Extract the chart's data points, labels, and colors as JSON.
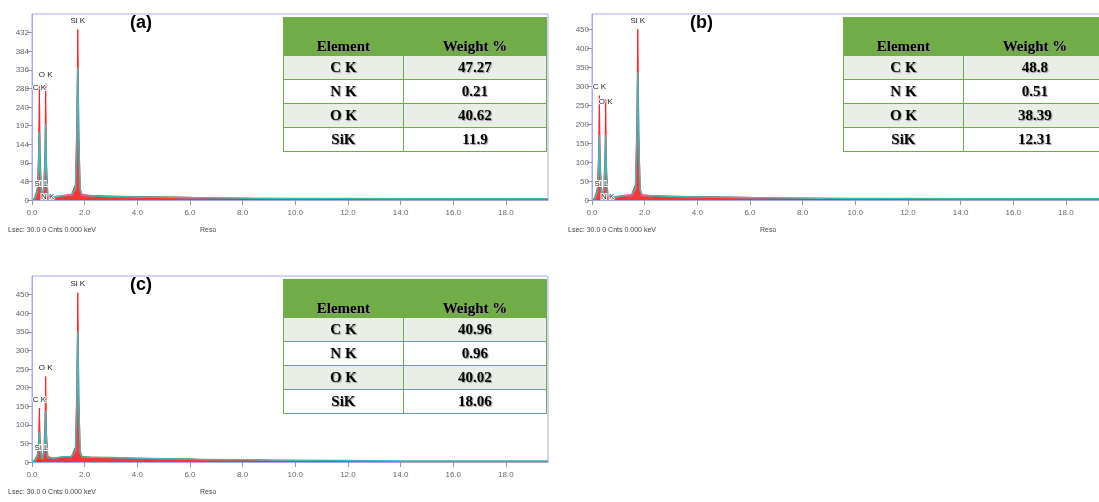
{
  "chart_data": [
    {
      "type": "area",
      "title": "(a)",
      "xlim": [
        0,
        19.6
      ],
      "xticks": [
        {
          "value": 0,
          "label": "0.0"
        },
        {
          "value": 2,
          "label": "2.0"
        },
        {
          "value": 4,
          "label": "4.0"
        },
        {
          "value": 6,
          "label": "6.0"
        },
        {
          "value": 8,
          "label": "8.0"
        },
        {
          "value": 10,
          "label": "10.0"
        },
        {
          "value": 12,
          "label": "12.0"
        },
        {
          "value": 14,
          "label": "14.0"
        },
        {
          "value": 16,
          "label": "16.0"
        },
        {
          "value": 18,
          "label": "18.0"
        }
      ],
      "ylim": [
        0,
        480
      ],
      "yticks": [
        0,
        48,
        96,
        144,
        192,
        240,
        288,
        336,
        384,
        432
      ],
      "grid": false,
      "marker": "none",
      "x": [
        0,
        0.1,
        0.2,
        0.25,
        0.28,
        0.31,
        0.36,
        0.39,
        0.45,
        0.49,
        0.52,
        0.55,
        0.6,
        0.8,
        1.0,
        1.2,
        1.5,
        1.65,
        1.7,
        1.74,
        1.78,
        1.83,
        1.9,
        2.2,
        3,
        4,
        5,
        6,
        6.5,
        8,
        10,
        12,
        14,
        16,
        18,
        19.6
      ],
      "series": [
        {
          "type": "area",
          "color": "#ff2020",
          "values": [
            0,
            5,
            30,
            120,
            295,
            120,
            20,
            10,
            40,
            120,
            300,
            100,
            15,
            8,
            10,
            12,
            14,
            40,
            200,
            440,
            180,
            30,
            14,
            12,
            10,
            9,
            8,
            7,
            5,
            3,
            2,
            1,
            1,
            1,
            1,
            1
          ]
        },
        {
          "type": "line",
          "color": "#3fb8b8",
          "values": [
            0,
            4,
            20,
            80,
            175,
            80,
            15,
            8,
            30,
            90,
            195,
            70,
            12,
            7,
            9,
            11,
            12,
            30,
            150,
            340,
            140,
            25,
            12,
            11,
            9,
            8,
            7,
            6,
            6,
            5,
            4,
            4,
            3,
            3,
            3,
            3
          ]
        }
      ],
      "annotations": [
        "Lsec: 30.0 0 Cnts 0.000 keV",
        "Reso",
        "Element",
        "Weight %",
        "C K",
        "47.27",
        "N K",
        "0.21",
        "O K",
        "40.62",
        "SiK",
        "11.9",
        {
          "text": "Si K",
          "x": 1.74,
          "y": 440
        },
        {
          "text": "O K",
          "x": 0.52,
          "y": 300
        },
        {
          "text": "C K",
          "x": 0.28,
          "y": 295
        },
        {
          "text": "Si L",
          "x": 0.36,
          "y": 20
        },
        {
          "text": "N K",
          "x": 0.6,
          "y": 15
        }
      ]
    },
    {
      "type": "area",
      "title": "(b)",
      "xlim": [
        0,
        19.6
      ],
      "xticks": [
        {
          "value": 0,
          "label": "0.0"
        },
        {
          "value": 2,
          "label": "2.0"
        },
        {
          "value": 4,
          "label": "4.0"
        },
        {
          "value": 6,
          "label": "6.0"
        },
        {
          "value": 8,
          "label": "8.0"
        },
        {
          "value": 10,
          "label": "10.0"
        },
        {
          "value": 12,
          "label": "12.0"
        },
        {
          "value": 14,
          "label": "14.0"
        },
        {
          "value": 16,
          "label": "16.0"
        },
        {
          "value": 18,
          "label": "18.0"
        }
      ],
      "ylim": [
        0,
        490
      ],
      "yticks": [
        0,
        50,
        100,
        150,
        200,
        250,
        300,
        350,
        400,
        450
      ],
      "grid": false,
      "marker": "none",
      "x": [
        0,
        0.1,
        0.2,
        0.25,
        0.28,
        0.31,
        0.36,
        0.39,
        0.45,
        0.49,
        0.52,
        0.55,
        0.6,
        0.8,
        1.0,
        1.2,
        1.5,
        1.65,
        1.7,
        1.74,
        1.78,
        1.83,
        1.9,
        2.2,
        3,
        4,
        5,
        6,
        6.5,
        8,
        10,
        12,
        14,
        16,
        18,
        19.6
      ],
      "series": [
        {
          "type": "area",
          "color": "#ff2020",
          "values": [
            0,
            5,
            30,
            120,
            275,
            110,
            20,
            10,
            40,
            110,
            265,
            90,
            15,
            8,
            10,
            12,
            14,
            40,
            200,
            450,
            180,
            30,
            14,
            12,
            10,
            9,
            8,
            7,
            5,
            3,
            2,
            1,
            1,
            1,
            1,
            1
          ]
        },
        {
          "type": "line",
          "color": "#3fb8b8",
          "values": [
            0,
            4,
            20,
            80,
            170,
            80,
            15,
            8,
            30,
            80,
            170,
            60,
            12,
            7,
            9,
            11,
            12,
            30,
            150,
            335,
            140,
            25,
            12,
            11,
            9,
            8,
            7,
            6,
            6,
            5,
            4,
            4,
            3,
            3,
            3,
            3
          ]
        }
      ],
      "annotations": [
        "Lsec: 30.0 0 Cnts 0.000 keV",
        "Reso",
        "Element",
        "Weight %",
        "C K",
        "48.8",
        "N K",
        "0.51",
        "O K",
        "38.39",
        "SiK",
        "12.31",
        {
          "text": "Si K",
          "x": 1.74,
          "y": 450
        },
        {
          "text": "C K",
          "x": 0.28,
          "y": 275
        },
        {
          "text": "O K",
          "x": 0.52,
          "y": 265
        },
        {
          "text": "Si L",
          "x": 0.36,
          "y": 20
        },
        {
          "text": "N K",
          "x": 0.6,
          "y": 15
        }
      ]
    },
    {
      "type": "area",
      "title": "(c)",
      "xlim": [
        0,
        19.6
      ],
      "xticks": [
        {
          "value": 0,
          "label": "0.0"
        },
        {
          "value": 2,
          "label": "2.0"
        },
        {
          "value": 4,
          "label": "4.0"
        },
        {
          "value": 6,
          "label": "6.0"
        },
        {
          "value": 8,
          "label": "8.0"
        },
        {
          "value": 10,
          "label": "10.0"
        },
        {
          "value": 12,
          "label": "12.0"
        },
        {
          "value": 14,
          "label": "14.0"
        },
        {
          "value": 16,
          "label": "16.0"
        },
        {
          "value": 18,
          "label": "18.0"
        }
      ],
      "ylim": [
        0,
        500
      ],
      "yticks": [
        0,
        50,
        100,
        150,
        200,
        250,
        300,
        350,
        400,
        450
      ],
      "grid": false,
      "marker": "none",
      "x": [
        0,
        0.1,
        0.2,
        0.25,
        0.28,
        0.31,
        0.36,
        0.39,
        0.45,
        0.49,
        0.52,
        0.55,
        0.6,
        0.8,
        1.0,
        1.2,
        1.5,
        1.65,
        1.7,
        1.74,
        1.78,
        1.83,
        1.9,
        2.2,
        3,
        4,
        5,
        6,
        6.5,
        8,
        10,
        12,
        14,
        16,
        18,
        19.6
      ],
      "series": [
        {
          "type": "area",
          "color": "#ff2020",
          "values": [
            0,
            5,
            20,
            60,
            145,
            60,
            15,
            10,
            30,
            100,
            230,
            80,
            15,
            10,
            12,
            14,
            15,
            40,
            200,
            455,
            180,
            30,
            15,
            13,
            12,
            10,
            9,
            8,
            6,
            4,
            2,
            1,
            1,
            1,
            1,
            1
          ]
        },
        {
          "type": "line",
          "color": "#3fb8b8",
          "values": [
            0,
            4,
            15,
            40,
            80,
            40,
            12,
            8,
            25,
            60,
            135,
            50,
            12,
            10,
            12,
            14,
            15,
            30,
            150,
            350,
            140,
            25,
            14,
            13,
            12,
            10,
            9,
            8,
            7,
            6,
            5,
            4,
            3,
            3,
            3,
            3
          ]
        }
      ],
      "annotations": [
        "Lsec: 30.0 0 Cnts 0.000 keV",
        "Reso",
        "Element",
        "Weight %",
        "C K",
        "40.96",
        "N K",
        "0.96",
        "O K",
        "40.02",
        "SiK",
        "18.06",
        {
          "text": "Si K",
          "x": 1.74,
          "y": 455
        },
        {
          "text": "O K",
          "x": 0.52,
          "y": 230
        },
        {
          "text": "C K",
          "x": 0.28,
          "y": 145
        },
        {
          "text": "Si L",
          "x": 0.36,
          "y": 15
        }
      ]
    }
  ]
}
